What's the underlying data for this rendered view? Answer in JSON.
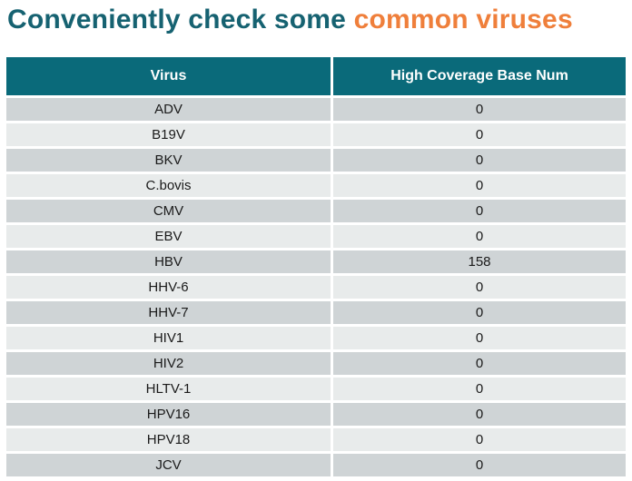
{
  "title": {
    "part1": "Conveniently check some ",
    "part2": "common viruses"
  },
  "colors": {
    "title_teal": "#166271",
    "title_orange": "#ef7f3b",
    "header_background": "#0a6a7a",
    "header_text": "#ffffff",
    "row_dark": "#cfd4d6",
    "row_light": "#e8ebeb",
    "cell_text": "#1a1a1a"
  },
  "table": {
    "columns": [
      "Virus",
      "High Coverage Base Num"
    ],
    "rows": [
      {
        "virus": "ADV",
        "value": "0"
      },
      {
        "virus": "B19V",
        "value": "0"
      },
      {
        "virus": "BKV",
        "value": "0"
      },
      {
        "virus": "C.bovis",
        "value": "0"
      },
      {
        "virus": "CMV",
        "value": "0"
      },
      {
        "virus": "EBV",
        "value": "0"
      },
      {
        "virus": "HBV",
        "value": "158"
      },
      {
        "virus": "HHV-6",
        "value": "0"
      },
      {
        "virus": "HHV-7",
        "value": "0"
      },
      {
        "virus": "HIV1",
        "value": "0"
      },
      {
        "virus": "HIV2",
        "value": "0"
      },
      {
        "virus": "HLTV-1",
        "value": "0"
      },
      {
        "virus": "HPV16",
        "value": "0"
      },
      {
        "virus": "HPV18",
        "value": "0"
      },
      {
        "virus": "JCV",
        "value": "0"
      }
    ]
  },
  "chart_data": {
    "type": "table",
    "title": "Conveniently check some common viruses",
    "categories": [
      "ADV",
      "B19V",
      "BKV",
      "C.bovis",
      "CMV",
      "EBV",
      "HBV",
      "HHV-6",
      "HHV-7",
      "HIV1",
      "HIV2",
      "HLTV-1",
      "HPV16",
      "HPV18",
      "JCV"
    ],
    "series": [
      {
        "name": "High Coverage Base Num",
        "values": [
          0,
          0,
          0,
          0,
          0,
          0,
          158,
          0,
          0,
          0,
          0,
          0,
          0,
          0,
          0
        ]
      }
    ],
    "layout_hints": {
      "header_style": "teal band with white bold text",
      "rows": "alternating gray stripes separated by white gaps",
      "alignment": "all cells centered"
    }
  }
}
